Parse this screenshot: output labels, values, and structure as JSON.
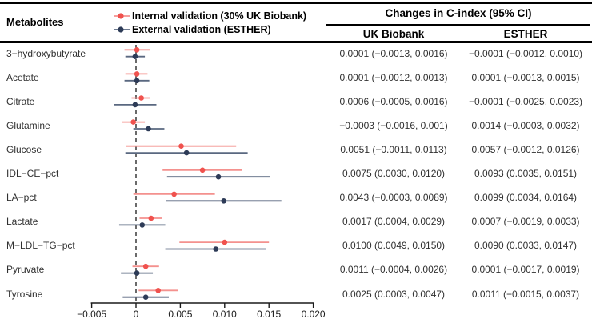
{
  "header": {
    "metabolites_label": "Metabolites",
    "changes_title": "Changes in C-index (95% CI)",
    "col_ukb": "UK Biobank",
    "col_esther": "ESTHER"
  },
  "legend": {
    "items": [
      {
        "label": "Internal validation (30% UK Biobank)"
      },
      {
        "label": "External validation (ESTHER)"
      }
    ]
  },
  "colors": {
    "axis": "#1a1a1a",
    "internal_point": "#f0524e",
    "internal_line": "#f4918e",
    "external_point": "#2d3b57",
    "external_line": "#5a6880"
  },
  "chart_data": {
    "type": "forest",
    "title": "Changes in C-index (95% CI)",
    "series": [
      {
        "key": "internal",
        "name": "Internal validation (30% UK Biobank)",
        "point_color": "#f0524e",
        "line_color": "#f4918e"
      },
      {
        "key": "external",
        "name": "External validation (ESTHER)",
        "point_color": "#2d3b57",
        "line_color": "#5a6880"
      }
    ],
    "axis": {
      "range": [
        -0.005,
        0.02
      ],
      "zero_line": 0,
      "ticks": [
        -0.005,
        0,
        0.005,
        0.01,
        0.015,
        0.02
      ],
      "tick_labels": [
        "−0.005",
        "0",
        "0.005",
        "0.010",
        "0.015",
        "0.020"
      ],
      "grid": false
    },
    "rows": [
      {
        "metabolite": "3−hydroxybutyrate",
        "internal": {
          "est": 0.0001,
          "lo": -0.0013,
          "hi": 0.0016,
          "text": "0.0001 (−0.0013, 0.0016)"
        },
        "external": {
          "est": -0.0001,
          "lo": -0.0012,
          "hi": 0.001,
          "text": "−0.0001 (−0.0012, 0.0010)"
        }
      },
      {
        "metabolite": "Acetate",
        "internal": {
          "est": 0.0001,
          "lo": -0.0012,
          "hi": 0.0013,
          "text": "0.0001 (−0.0012, 0.0013)"
        },
        "external": {
          "est": 0.0001,
          "lo": -0.0013,
          "hi": 0.0015,
          "text": "0.0001 (−0.0013, 0.0015)"
        }
      },
      {
        "metabolite": "Citrate",
        "internal": {
          "est": 0.0006,
          "lo": -0.0005,
          "hi": 0.0016,
          "text": "0.0006 (−0.0005, 0.0016)"
        },
        "external": {
          "est": -0.0001,
          "lo": -0.0025,
          "hi": 0.0023,
          "text": "−0.0001 (−0.0025, 0.0023)"
        }
      },
      {
        "metabolite": "Glutamine",
        "internal": {
          "est": -0.0003,
          "lo": -0.0016,
          "hi": 0.001,
          "text": "−0.0003 (−0.0016, 0.001)"
        },
        "external": {
          "est": 0.0014,
          "lo": -0.0003,
          "hi": 0.0032,
          "text": "0.0014 (−0.0003, 0.0032)"
        }
      },
      {
        "metabolite": "Glucose",
        "internal": {
          "est": 0.0051,
          "lo": -0.0011,
          "hi": 0.0113,
          "text": "0.0051 (−0.0011, 0.0113)"
        },
        "external": {
          "est": 0.0057,
          "lo": -0.0012,
          "hi": 0.0126,
          "text": "0.0057 (−0.0012, 0.0126)"
        }
      },
      {
        "metabolite": "IDL−CE−pct",
        "internal": {
          "est": 0.0075,
          "lo": 0.003,
          "hi": 0.012,
          "text": "0.0075 (0.0030, 0.0120)"
        },
        "external": {
          "est": 0.0093,
          "lo": 0.0035,
          "hi": 0.0151,
          "text": "0.0093 (0.0035, 0.0151)"
        }
      },
      {
        "metabolite": "LA−pct",
        "internal": {
          "est": 0.0043,
          "lo": -0.0003,
          "hi": 0.0089,
          "text": "0.0043 (−0.0003, 0.0089)"
        },
        "external": {
          "est": 0.0099,
          "lo": 0.0034,
          "hi": 0.0164,
          "text": "0.0099 (0.0034, 0.0164)"
        }
      },
      {
        "metabolite": "Lactate",
        "internal": {
          "est": 0.0017,
          "lo": 0.0004,
          "hi": 0.0029,
          "text": "0.0017 (0.0004, 0.0029)"
        },
        "external": {
          "est": 0.0007,
          "lo": -0.0019,
          "hi": 0.0033,
          "text": "0.0007 (−0.0019, 0.0033)"
        }
      },
      {
        "metabolite": "M−LDL−TG−pct",
        "internal": {
          "est": 0.01,
          "lo": 0.0049,
          "hi": 0.015,
          "text": "0.0100 (0.0049, 0.0150)"
        },
        "external": {
          "est": 0.009,
          "lo": 0.0033,
          "hi": 0.0147,
          "text": "0.0090 (0.0033, 0.0147)"
        }
      },
      {
        "metabolite": "Pyruvate",
        "internal": {
          "est": 0.0011,
          "lo": -0.0004,
          "hi": 0.0026,
          "text": "0.0011 (−0.0004, 0.0026)"
        },
        "external": {
          "est": 0.0001,
          "lo": -0.0017,
          "hi": 0.0019,
          "text": "0.0001 (−0.0017, 0.0019)"
        }
      },
      {
        "metabolite": "Tyrosine",
        "internal": {
          "est": 0.0025,
          "lo": 0.0003,
          "hi": 0.0047,
          "text": "0.0025 (0.0003, 0.0047)"
        },
        "external": {
          "est": 0.0011,
          "lo": -0.0015,
          "hi": 0.0037,
          "text": "0.0011 (−0.0015, 0.0037)"
        }
      }
    ]
  }
}
